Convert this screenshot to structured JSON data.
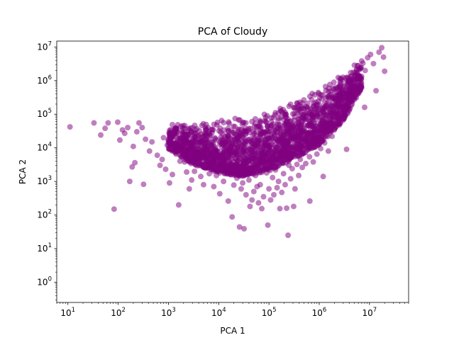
{
  "chart_data": {
    "type": "scatter",
    "title": "PCA of Cloudy",
    "xlabel": "PCA 1",
    "ylabel": "PCA 2",
    "x_scale": "log",
    "y_scale": "log",
    "xlim": [
      6,
      60000000
    ],
    "ylim": [
      0.25,
      15000000
    ],
    "x_ticks": [
      {
        "value": 10,
        "base": "10",
        "exp": "1"
      },
      {
        "value": 100,
        "base": "10",
        "exp": "2"
      },
      {
        "value": 1000,
        "base": "10",
        "exp": "3"
      },
      {
        "value": 10000,
        "base": "10",
        "exp": "4"
      },
      {
        "value": 100000,
        "base": "10",
        "exp": "5"
      },
      {
        "value": 1000000,
        "base": "10",
        "exp": "6"
      },
      {
        "value": 10000000,
        "base": "10",
        "exp": "7"
      }
    ],
    "y_ticks": [
      {
        "value": 1,
        "base": "10",
        "exp": "0"
      },
      {
        "value": 10,
        "base": "10",
        "exp": "1"
      },
      {
        "value": 100,
        "base": "10",
        "exp": "2"
      },
      {
        "value": 1000,
        "base": "10",
        "exp": "3"
      },
      {
        "value": 10000,
        "base": "10",
        "exp": "4"
      },
      {
        "value": 100000,
        "base": "10",
        "exp": "5"
      },
      {
        "value": 1000000,
        "base": "10",
        "exp": "6"
      },
      {
        "value": 10000000,
        "base": "10",
        "exp": "7"
      }
    ],
    "marker_color": "#800080",
    "marker_alpha": 0.5,
    "grid": false,
    "legend": "none",
    "series": [
      {
        "points": [
          [
            11,
            42000
          ],
          [
            33,
            55000
          ],
          [
            45,
            24000
          ],
          [
            55,
            38000
          ],
          [
            63,
            55000
          ],
          [
            83,
            150
          ],
          [
            98,
            58000
          ],
          [
            108,
            17000
          ],
          [
            122,
            34000
          ],
          [
            135,
            27000
          ],
          [
            155,
            40000
          ],
          [
            170,
            1000
          ],
          [
            190,
            2700
          ],
          [
            200,
            11000
          ],
          [
            215,
            3600
          ],
          [
            235,
            30000
          ],
          [
            260,
            55000
          ],
          [
            300,
            40000
          ],
          [
            320,
            820
          ],
          [
            350,
            18000
          ],
          [
            420,
            8000
          ],
          [
            470,
            15000
          ],
          [
            600,
            6000
          ],
          [
            680,
            3000
          ],
          [
            750,
            4500
          ],
          [
            800,
            20000
          ],
          [
            880,
            2300
          ],
          [
            950,
            12000
          ],
          [
            1050,
            900
          ],
          [
            1200,
            1600
          ],
          [
            1600,
            200
          ],
          [
            1700,
            4000
          ],
          [
            1900,
            9000
          ],
          [
            2100,
            3800
          ],
          [
            2300,
            1900
          ],
          [
            2600,
            600
          ],
          [
            2900,
            1100
          ],
          [
            3300,
            2000
          ],
          [
            3800,
            4500
          ],
          [
            4400,
            1400
          ],
          [
            5000,
            800
          ],
          [
            5800,
            2800
          ],
          [
            6500,
            1700
          ],
          [
            7400,
            3200
          ],
          [
            8000,
            700
          ],
          [
            9000,
            1500
          ],
          [
            10500,
            430
          ],
          [
            11500,
            2400
          ],
          [
            12500,
            1000
          ],
          [
            14000,
            3000
          ],
          [
            15500,
            260
          ],
          [
            17000,
            1600
          ],
          [
            18500,
            88
          ],
          [
            20000,
            780
          ],
          [
            21500,
            2000
          ],
          [
            23000,
            1250
          ],
          [
            26000,
            44
          ],
          [
            28000,
            600
          ],
          [
            30000,
            900
          ],
          [
            32000,
            39
          ],
          [
            35000,
            400
          ],
          [
            37000,
            2300
          ],
          [
            40000,
            1100
          ],
          [
            42000,
            180
          ],
          [
            46000,
            280
          ],
          [
            50000,
            500
          ],
          [
            54000,
            1500
          ],
          [
            58000,
            700
          ],
          [
            62000,
            230
          ],
          [
            67000,
            800
          ],
          [
            72000,
            155
          ],
          [
            78000,
            350
          ],
          [
            84000,
            2800
          ],
          [
            90000,
            1800
          ],
          [
            95000,
            50
          ],
          [
            100000,
            600
          ],
          [
            108000,
            280
          ],
          [
            118000,
            1300
          ],
          [
            125000,
            400
          ],
          [
            135000,
            2200
          ],
          [
            145000,
            650
          ],
          [
            155000,
            1000
          ],
          [
            165000,
            155
          ],
          [
            180000,
            470
          ],
          [
            195000,
            1700
          ],
          [
            210000,
            800
          ],
          [
            225000,
            160
          ],
          [
            240000,
            25
          ],
          [
            250000,
            3000
          ],
          [
            270000,
            1200
          ],
          [
            290000,
            2400
          ],
          [
            310000,
            180
          ],
          [
            330000,
            600
          ],
          [
            360000,
            3200
          ],
          [
            390000,
            1500
          ],
          [
            420000,
            4500
          ],
          [
            460000,
            2600
          ],
          [
            500000,
            7000
          ],
          [
            540000,
            3400
          ],
          [
            590000,
            9000
          ],
          [
            640000,
            5400
          ],
          [
            700000,
            12000
          ],
          [
            760000,
            3800
          ],
          [
            830000,
            18000
          ],
          [
            900000,
            6500
          ],
          [
            980000,
            26000
          ],
          [
            1070000,
            9500
          ],
          [
            1170000,
            35000
          ],
          [
            1280000,
            14000
          ],
          [
            1400000,
            50000
          ],
          [
            1520000,
            8000
          ],
          [
            1650000,
            75000
          ],
          [
            1800000,
            22000
          ],
          [
            1950000,
            120000
          ],
          [
            2100000,
            40000
          ],
          [
            2300000,
            180000
          ],
          [
            2500000,
            65000
          ],
          [
            2700000,
            260000
          ],
          [
            2900000,
            110000
          ],
          [
            3100000,
            420000
          ],
          [
            3300000,
            170000
          ],
          [
            3500000,
            600000
          ],
          [
            3800000,
            280000
          ],
          [
            4200000,
            900000
          ],
          [
            4600000,
            450000
          ],
          [
            5100000,
            1400000
          ],
          [
            5600000,
            750000
          ],
          [
            6200000,
            2200000
          ],
          [
            6800000,
            1200000
          ],
          [
            7400000,
            3300000
          ],
          [
            8200000,
            2000000
          ],
          [
            9200000,
            4800000
          ],
          [
            10500000,
            6000000
          ],
          [
            12000000,
            3200000
          ],
          [
            13500000,
            500000
          ],
          [
            15500000,
            7000000
          ],
          [
            17500000,
            9500000
          ],
          [
            19000000,
            5000000
          ],
          [
            20000000,
            1900000
          ],
          [
            3500000,
            9000
          ],
          [
            8000000,
            160000
          ],
          [
            1200000,
            1400
          ],
          [
            650000,
            260
          ],
          [
            150000,
            2800
          ]
        ]
      }
    ],
    "density_band": {
      "upper": [
        [
          1000,
          60000
        ],
        [
          10000,
          70000
        ],
        [
          50000,
          90000
        ],
        [
          100000,
          120000
        ],
        [
          300000,
          230000
        ],
        [
          1000000,
          600000
        ],
        [
          3000000,
          1800000
        ],
        [
          7000000,
          4200000
        ]
      ],
      "lower": [
        [
          1000,
          9000
        ],
        [
          3000,
          3200
        ],
        [
          10000,
          1800
        ],
        [
          30000,
          1400
        ],
        [
          100000,
          2000
        ],
        [
          300000,
          4500
        ],
        [
          1000000,
          12000
        ],
        [
          3000000,
          60000
        ],
        [
          7000000,
          600000
        ]
      ],
      "sample_count": 2200
    }
  }
}
